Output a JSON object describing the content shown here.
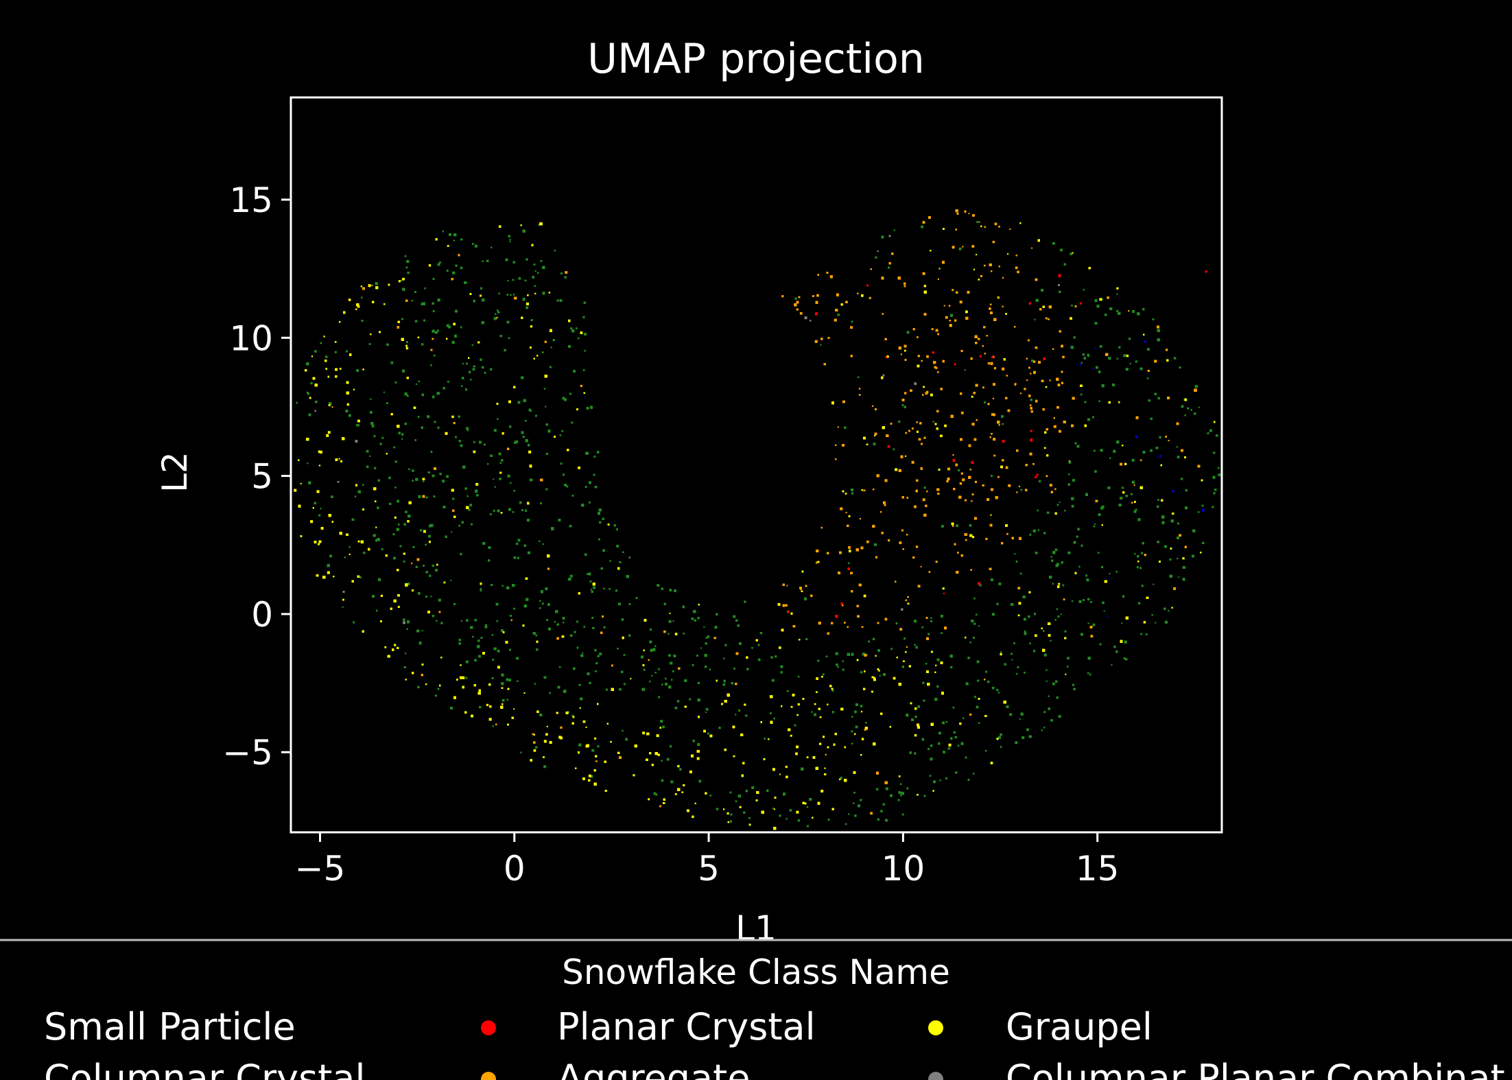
{
  "chart_data": {
    "type": "scatter",
    "title": "UMAP projection",
    "xlabel": "L1",
    "ylabel": "L2",
    "xlim": [
      -5.75,
      18.2
    ],
    "ylim": [
      -7.9,
      18.7
    ],
    "xticks": [
      -5,
      0,
      5,
      10,
      15
    ],
    "yticks": [
      -5,
      0,
      5,
      10,
      15
    ],
    "xtick_labels": [
      "−5",
      "0",
      "5",
      "10",
      "15"
    ],
    "ytick_labels": [
      "−5",
      "0",
      "5",
      "10",
      "15"
    ],
    "grid": false,
    "background": "#000000",
    "legend": {
      "title": "Snowflake Class Name",
      "placement": "below plot, 3 columns",
      "entries": [
        {
          "name": "Small Particle",
          "color": "#228b22",
          "marker_visible": false
        },
        {
          "name": "Planar Crystal",
          "color": "#ff0000",
          "marker_visible": true
        },
        {
          "name": "Graupel",
          "color": "#ffff00",
          "marker_visible": true
        },
        {
          "name": "Columnar Crystal",
          "color": "#0000cd",
          "marker_visible": false
        },
        {
          "name": "Aggregate",
          "color": "#ffa500",
          "marker_visible": true
        },
        {
          "name": "Columnar Planar Combinat",
          "color": "#808080",
          "marker_visible": true
        }
      ]
    },
    "series": [
      {
        "name": "Small Particle",
        "color": "#228b22",
        "region": "whole horseshoe, densest on left arm and outer right edge"
      },
      {
        "name": "Planar Crystal",
        "color": "#ff0000",
        "region": "sparse, mixed within upper-right lobe"
      },
      {
        "name": "Graupel",
        "color": "#ffff00",
        "region": "outer left edge and lower band"
      },
      {
        "name": "Columnar Crystal",
        "color": "#0000cd",
        "region": "few points on far right edge"
      },
      {
        "name": "Aggregate",
        "color": "#ffa500",
        "region": "upper-right lobe"
      },
      {
        "name": "Columnar Planar Combinat",
        "color": "#808080",
        "region": "sparse"
      }
    ],
    "shape": {
      "outer_boundary": [
        [
          -5.7,
          7.5
        ],
        [
          -5.2,
          10
        ],
        [
          -4.2,
          11.8
        ],
        [
          -3,
          13.2
        ],
        [
          -2,
          14
        ],
        [
          -1,
          14.3
        ],
        [
          0,
          14.5
        ],
        [
          1,
          14.2
        ],
        [
          1.6,
          12.8
        ],
        [
          1.9,
          10.5
        ],
        [
          2,
          8
        ],
        [
          2.2,
          5.5
        ],
        [
          2.7,
          3
        ],
        [
          3.4,
          1.5
        ],
        [
          4.5,
          0.6
        ],
        [
          5.5,
          0.4
        ],
        [
          6.3,
          0.6
        ],
        [
          7,
          1.4
        ],
        [
          7.6,
          2.5
        ],
        [
          8,
          3.8
        ],
        [
          8.2,
          5.2
        ],
        [
          8.2,
          7
        ],
        [
          8,
          8.8
        ],
        [
          7.4,
          10.5
        ],
        [
          6.4,
          12.2
        ],
        [
          7.5,
          12.3
        ],
        [
          9,
          13.4
        ],
        [
          10.5,
          14.6
        ],
        [
          11.5,
          14.8
        ],
        [
          13,
          14.2
        ],
        [
          14.5,
          13
        ],
        [
          16,
          11.5
        ],
        [
          17.2,
          9.2
        ],
        [
          18,
          7
        ],
        [
          18.2,
          5.5
        ],
        [
          17.9,
          3.5
        ],
        [
          17.5,
          1.5
        ],
        [
          16.5,
          -0.8
        ],
        [
          15,
          -2.6
        ],
        [
          13.5,
          -4.3
        ],
        [
          12,
          -5.8
        ],
        [
          10.5,
          -7
        ],
        [
          9,
          -7.7
        ],
        [
          7.2,
          -7.9
        ],
        [
          5.5,
          -7.7
        ],
        [
          3.5,
          -7
        ],
        [
          1.5,
          -6
        ],
        [
          -0.5,
          -4.8
        ],
        [
          -2.5,
          -2.8
        ],
        [
          -4,
          -0.8
        ],
        [
          -5,
          1
        ],
        [
          -5.6,
          3
        ],
        [
          -5.8,
          5.5
        ]
      ],
      "right_lobe": [
        [
          6.4,
          12.2
        ],
        [
          7.6,
          12.2
        ],
        [
          9,
          13.3
        ],
        [
          10.5,
          14.6
        ],
        [
          11.8,
          14.8
        ],
        [
          13.2,
          14
        ],
        [
          14.2,
          12.5
        ],
        [
          14.8,
          10.5
        ],
        [
          15,
          8.5
        ],
        [
          14.7,
          6.5
        ],
        [
          14,
          4.5
        ],
        [
          13,
          2.5
        ],
        [
          11.5,
          0.5
        ],
        [
          10,
          -0.5
        ],
        [
          8.5,
          -1
        ],
        [
          7.5,
          -0.8
        ],
        [
          6.5,
          0
        ],
        [
          6.5,
          0.5
        ],
        [
          7,
          1.4
        ],
        [
          7.6,
          2.5
        ],
        [
          8,
          3.8
        ],
        [
          8.2,
          5.2
        ],
        [
          8.2,
          7
        ],
        [
          8,
          8.8
        ],
        [
          7.4,
          10.5
        ]
      ],
      "left_outer_band": [
        [
          -5.7,
          7.5
        ],
        [
          -5.2,
          10
        ],
        [
          -4.5,
          11.5
        ],
        [
          -3.2,
          12.6
        ],
        [
          -2.5,
          12
        ],
        [
          -3.5,
          10
        ],
        [
          -4,
          7.5
        ],
        [
          -4,
          5
        ],
        [
          -3.5,
          2.5
        ],
        [
          -2.5,
          0
        ],
        [
          -1,
          -1.8
        ],
        [
          1,
          -3
        ],
        [
          3,
          -3.5
        ],
        [
          5,
          -3
        ],
        [
          7,
          -2.2
        ],
        [
          9,
          -1.5
        ],
        [
          11,
          -1.2
        ],
        [
          11,
          -3.5
        ],
        [
          9.5,
          -5.5
        ],
        [
          8,
          -7
        ],
        [
          6.5,
          -7.8
        ],
        [
          5,
          -7.6
        ],
        [
          3.5,
          -7
        ],
        [
          1.5,
          -6
        ],
        [
          -0.5,
          -4.8
        ],
        [
          -2.5,
          -2.8
        ],
        [
          -4,
          -0.8
        ],
        [
          -5,
          1
        ],
        [
          -5.6,
          3
        ],
        [
          -5.8,
          5.5
        ]
      ]
    }
  }
}
